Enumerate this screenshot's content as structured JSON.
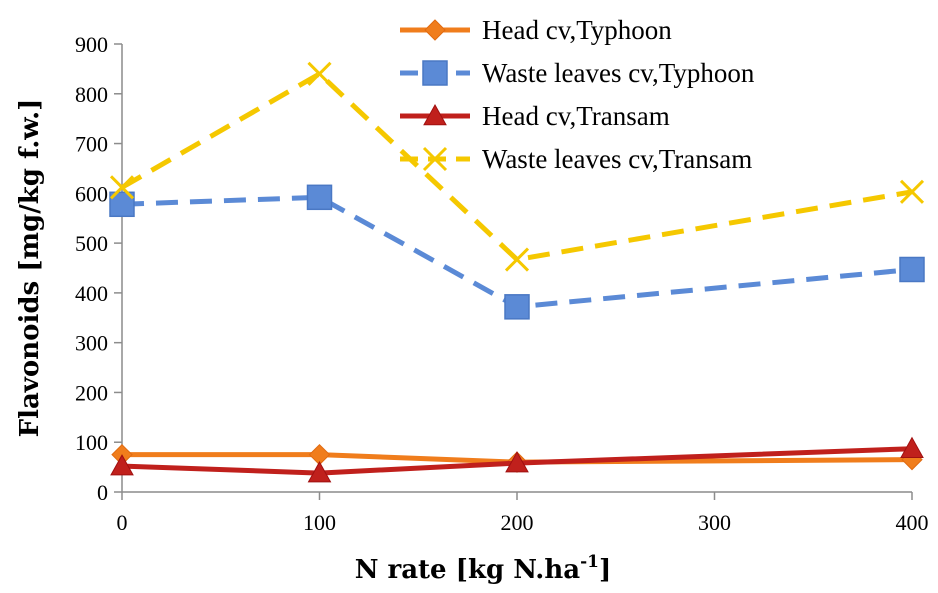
{
  "chart_data": {
    "type": "line",
    "x": [
      0,
      100,
      200,
      400
    ],
    "xticks": [
      "0",
      "100",
      "200",
      "300",
      "400"
    ],
    "yticks": [
      "0",
      "100",
      "200",
      "300",
      "400",
      "500",
      "600",
      "700",
      "800",
      "900"
    ],
    "xlim": [
      0,
      400
    ],
    "ylim": [
      0,
      900
    ],
    "xlabel_main": "N rate  [kg N.ha",
    "xlabel_sup": "-1",
    "xlabel_end": "]",
    "ylabel": "Flavonoids   [mg/kg f.w.]",
    "grid": false,
    "legend_position": "top-right",
    "series": [
      {
        "name": "Head cv,Typhoon",
        "values": [
          75,
          75,
          60,
          65
        ],
        "color": "#f07d1c",
        "dash": "solid",
        "marker": "diamond"
      },
      {
        "name": "Waste leaves cv,Typhoon",
        "values": [
          578,
          592,
          372,
          447
        ],
        "color": "#5b8ad6",
        "dash": "dashed",
        "marker": "square"
      },
      {
        "name": "Head cv,Transam",
        "values": [
          52,
          38,
          58,
          87
        ],
        "color": "#c0201c",
        "dash": "solid",
        "marker": "triangle"
      },
      {
        "name": "Waste leaves cv,Transam",
        "values": [
          612,
          840,
          467,
          603
        ],
        "color": "#f5c800",
        "dash": "dashed",
        "marker": "x"
      }
    ]
  }
}
